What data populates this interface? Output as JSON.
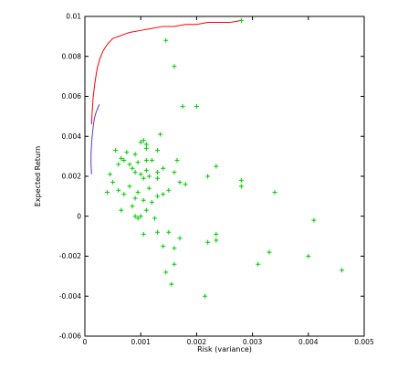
{
  "chart_data": {
    "type": "scatter",
    "title": "",
    "xlabel": "Risk (variance)",
    "ylabel": "Expected Return",
    "xlim": [
      0,
      0.005
    ],
    "ylim": [
      -0.006,
      0.01
    ],
    "x_ticks": [
      0,
      0.001,
      0.002,
      0.003,
      0.004,
      0.005
    ],
    "x_tick_labels": [
      "0",
      "0.001",
      "0.002",
      "0.003",
      "0.004",
      "0.005"
    ],
    "y_ticks": [
      -0.006,
      -0.004,
      -0.002,
      0,
      0.002,
      0.004,
      0.006,
      0.008,
      0.01
    ],
    "y_tick_labels": [
      "-0.006",
      "-0.004",
      "-0.002",
      "0",
      "0.002",
      "0.004",
      "0.006",
      "0.008",
      "0.01"
    ],
    "grid": false,
    "legend": "none",
    "colors": {
      "efficient_frontier": "#ff0000",
      "lower_frontier_segment": "#6633cc",
      "assets": "#00cc00"
    },
    "series": [
      {
        "type": "line",
        "color": "#ff0000",
        "x": [
          0.00012,
          0.00013,
          0.00015,
          0.00018,
          0.00022,
          0.00027,
          0.00033,
          0.0004,
          0.0005,
          0.0006,
          0.0007,
          0.0008,
          0.001,
          0.0012,
          0.0014,
          0.0016,
          0.0018,
          0.002,
          0.0022,
          0.0024,
          0.0026,
          0.0028
        ],
        "y": [
          0.0046,
          0.0052,
          0.006,
          0.0067,
          0.0074,
          0.0079,
          0.0083,
          0.0086,
          0.0089,
          0.009,
          0.0091,
          0.0092,
          0.0093,
          0.0094,
          0.0095,
          0.0095,
          0.0096,
          0.0096,
          0.0097,
          0.0097,
          0.0097,
          0.0098
        ]
      },
      {
        "type": "line",
        "color": "#6633cc",
        "x": [
          0.00012,
          0.00011,
          0.00011,
          0.00012,
          0.00013,
          0.00015,
          0.00017,
          0.0002,
          0.00023,
          0.00026
        ],
        "y": [
          0.0021,
          0.0026,
          0.0031,
          0.0036,
          0.004,
          0.0045,
          0.0049,
          0.0052,
          0.0054,
          0.0056
        ]
      },
      {
        "type": "scatter",
        "marker": "+",
        "color": "#00cc00",
        "points": [
          [
            0.00145,
            0.0088
          ],
          [
            0.0016,
            0.0075
          ],
          [
            0.0028,
            0.0098
          ],
          [
            0.00175,
            0.0055
          ],
          [
            0.002,
            0.0055
          ],
          [
            0.00105,
            0.0038
          ],
          [
            0.0011,
            0.0036
          ],
          [
            0.00135,
            0.0041
          ],
          [
            0.001,
            0.0037
          ],
          [
            0.00055,
            0.0033
          ],
          [
            0.00075,
            0.0032
          ],
          [
            0.0011,
            0.0034
          ],
          [
            0.0013,
            0.0033
          ],
          [
            0.00045,
            0.0021
          ],
          [
            0.0006,
            0.0026
          ],
          [
            0.0007,
            0.0028
          ],
          [
            0.00065,
            0.0029
          ],
          [
            0.0008,
            0.0026
          ],
          [
            0.00085,
            0.0024
          ],
          [
            0.0009,
            0.0022
          ],
          [
            0.00095,
            0.0027
          ],
          [
            0.001,
            0.0021
          ],
          [
            0.00105,
            0.0019
          ],
          [
            0.0011,
            0.0023
          ],
          [
            0.00115,
            0.002
          ],
          [
            0.0012,
            0.0028
          ],
          [
            0.0013,
            0.0022
          ],
          [
            0.0014,
            0.0024
          ],
          [
            0.00165,
            0.0028
          ],
          [
            0.0016,
            0.0022
          ],
          [
            0.0017,
            0.0017
          ],
          [
            0.0018,
            0.0016
          ],
          [
            0.0005,
            0.0017
          ],
          [
            0.0006,
            0.0013
          ],
          [
            0.0007,
            0.0011
          ],
          [
            0.0008,
            0.0015
          ],
          [
            0.0009,
            0.0009
          ],
          [
            0.00095,
            0.0012
          ],
          [
            0.00105,
            0.0008
          ],
          [
            0.00115,
            0.0014
          ],
          [
            0.0012,
            0.0007
          ],
          [
            0.0013,
            0.001
          ],
          [
            0.0014,
            0.0011
          ],
          [
            0.0015,
            0.0013
          ],
          [
            0.00065,
            0.0003
          ],
          [
            0.00085,
            0.0005
          ],
          [
            0.0009,
            0
          ],
          [
            0.00095,
            -0.0001
          ],
          [
            0.001,
            0
          ],
          [
            0.0011,
            0.0003
          ],
          [
            0.00125,
            -0.0001
          ],
          [
            0.00105,
            -0.0009
          ],
          [
            0.0013,
            -0.0008
          ],
          [
            0.0015,
            -0.0008
          ],
          [
            0.0014,
            -0.0015
          ],
          [
            0.0016,
            -0.0016
          ],
          [
            0.0017,
            -0.0011
          ],
          [
            0.0016,
            -0.0024
          ],
          [
            0.00145,
            -0.0028
          ],
          [
            0.00155,
            -0.0034
          ],
          [
            0.00215,
            -0.004
          ],
          [
            0.0022,
            -0.0013
          ],
          [
            0.00235,
            -0.0012
          ],
          [
            0.00235,
            -0.0009
          ],
          [
            0.0022,
            0.002
          ],
          [
            0.00235,
            0.0025
          ],
          [
            0.0028,
            0.0018
          ],
          [
            0.0028,
            0.0015
          ],
          [
            0.0034,
            0.0012
          ],
          [
            0.0031,
            -0.0024
          ],
          [
            0.0033,
            -0.0018
          ],
          [
            0.004,
            -0.002
          ],
          [
            0.0041,
            -0.0002
          ],
          [
            0.0046,
            -0.0027
          ],
          [
            0.0004,
            0.0012
          ],
          [
            0.0009,
            0.0031
          ],
          [
            0.0011,
            0.0028
          ],
          [
            0.0013,
            0.0019
          ]
        ]
      }
    ]
  }
}
